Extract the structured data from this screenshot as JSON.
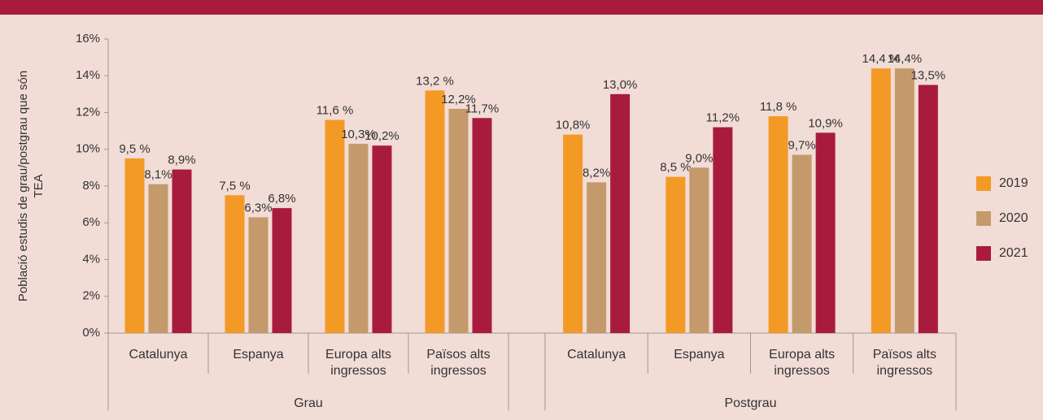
{
  "chart_data": {
    "type": "bar",
    "y_label": "Població estudis de grau/postgrau que són TEA",
    "categories": [
      "Catalunya",
      "Espanya",
      "Europa alts ingressos",
      "Països alts ingressos",
      "Catalunya",
      "Espanya",
      "Europa alts ingressos",
      "Països alts ingressos"
    ],
    "groups": [
      "Grau",
      "Postgrau"
    ],
    "series": [
      {
        "name": "2019",
        "color": "#f39a26",
        "values": [
          9.5,
          7.5,
          11.6,
          13.2,
          10.8,
          8.5,
          11.8,
          14.4
        ],
        "value_labels": [
          "9,5 %",
          "7,5 %",
          "11,6 %",
          "13,2 %",
          "10,8%",
          "8,5 %",
          "11,8 %",
          "14,4 %"
        ]
      },
      {
        "name": "2020",
        "color": "#c49a6c",
        "values": [
          8.1,
          6.3,
          10.3,
          12.2,
          8.2,
          9.0,
          9.7,
          14.4
        ],
        "value_labels": [
          "8,1%",
          "6,3%",
          "10,3%",
          "12,2%",
          "8,2%",
          "9,0%",
          "9,7%",
          "14,4%"
        ]
      },
      {
        "name": "2021",
        "color": "#a91b3c",
        "values": [
          8.9,
          6.8,
          10.2,
          11.7,
          13.0,
          11.2,
          10.9,
          13.5
        ],
        "value_labels": [
          "8,9%",
          "6,8%",
          "10,2%",
          "11,7%",
          "13,0%",
          "11,2%",
          "10,9%",
          "13,5%"
        ]
      }
    ],
    "ylim": [
      0,
      16
    ],
    "yticks": [
      {
        "value": 0,
        "label": "0%"
      },
      {
        "value": 2,
        "label": "2%"
      },
      {
        "value": 4,
        "label": "4%"
      },
      {
        "value": 6,
        "label": "6%"
      },
      {
        "value": 8,
        "label": "8%"
      },
      {
        "value": 10,
        "label": "10%"
      },
      {
        "value": 12,
        "label": "12%"
      },
      {
        "value": 14,
        "label": "14%"
      },
      {
        "value": 16,
        "label": "16%"
      }
    ],
    "legend": "right"
  }
}
